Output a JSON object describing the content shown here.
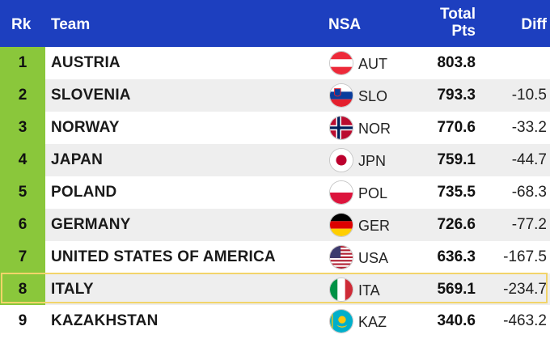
{
  "header": {
    "rank": "Rk",
    "team": "Team",
    "nsa": "NSA",
    "total_line1": "Total",
    "total_line2": "Pts",
    "diff": "Diff"
  },
  "rows": [
    {
      "rank": "1",
      "team": "AUSTRIA",
      "nsa": "AUT",
      "flag_icon": "austria-flag-icon",
      "total": "803.8",
      "diff": ""
    },
    {
      "rank": "2",
      "team": "SLOVENIA",
      "nsa": "SLO",
      "flag_icon": "slovenia-flag-icon",
      "total": "793.3",
      "diff": "-10.5"
    },
    {
      "rank": "3",
      "team": "NORWAY",
      "nsa": "NOR",
      "flag_icon": "norway-flag-icon",
      "total": "770.6",
      "diff": "-33.2"
    },
    {
      "rank": "4",
      "team": "JAPAN",
      "nsa": "JPN",
      "flag_icon": "japan-flag-icon",
      "total": "759.1",
      "diff": "-44.7"
    },
    {
      "rank": "5",
      "team": "POLAND",
      "nsa": "POL",
      "flag_icon": "poland-flag-icon",
      "total": "735.5",
      "diff": "-68.3"
    },
    {
      "rank": "6",
      "team": "GERMANY",
      "nsa": "GER",
      "flag_icon": "germany-flag-icon",
      "total": "726.6",
      "diff": "-77.2"
    },
    {
      "rank": "7",
      "team": "UNITED STATES OF AMERICA",
      "nsa": "USA",
      "flag_icon": "usa-flag-icon",
      "total": "636.3",
      "diff": "-167.5"
    },
    {
      "rank": "8",
      "team": "ITALY",
      "nsa": "ITA",
      "flag_icon": "italy-flag-icon",
      "total": "569.1",
      "diff": "-234.7"
    },
    {
      "rank": "9",
      "team": "KAZAKHSTAN",
      "nsa": "KAZ",
      "flag_icon": "kazakhstan-flag-icon",
      "total": "340.6",
      "diff": "-463.2"
    }
  ],
  "colors": {
    "header_bg": "#1d3fbf",
    "podium_rank_bg": "#8ac73b",
    "highlight_border": "#f2d46a",
    "stripe_bg": "#eeeeee"
  }
}
